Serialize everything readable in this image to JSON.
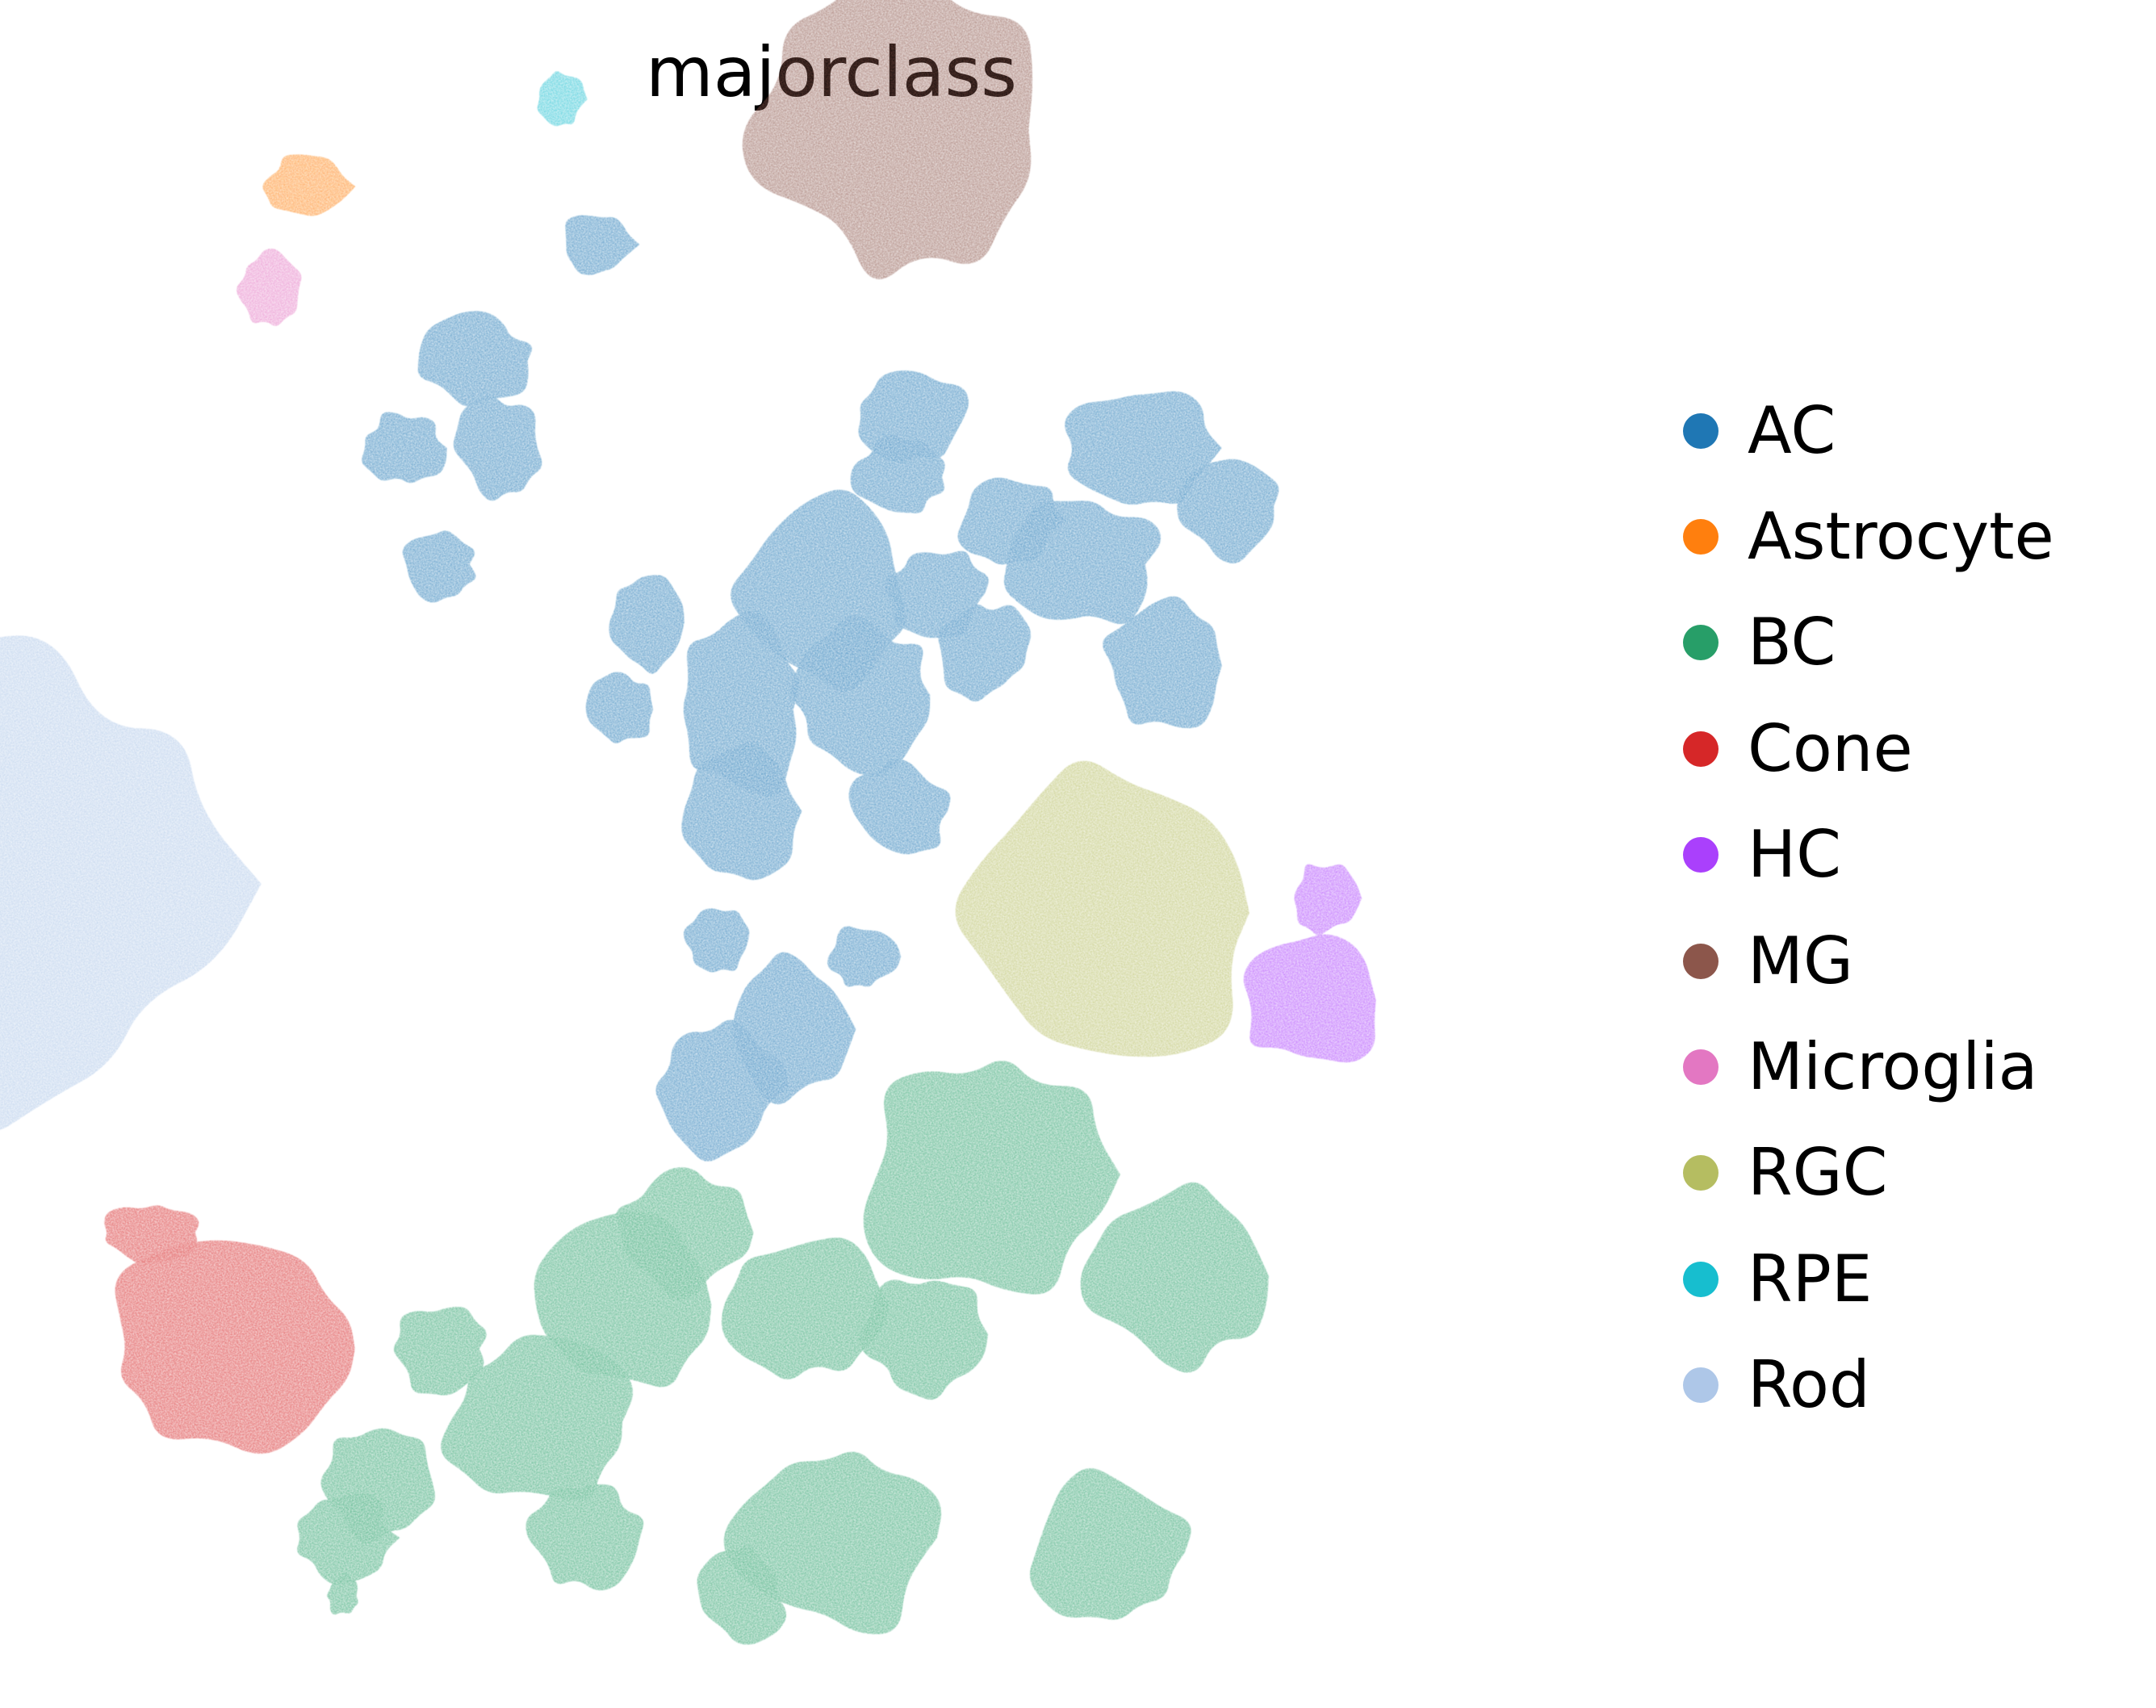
{
  "title": "majorclass",
  "chart_data": {
    "type": "scatter",
    "title": "majorclass",
    "xlabel": "",
    "ylabel": "",
    "axes_visible": false,
    "grid": false,
    "legend_position": "right",
    "series": [
      {
        "name": "AC",
        "color": "#1f77b4",
        "clusters": [
          {
            "x": 0.5,
            "y": 0.62
          },
          {
            "x": 0.57,
            "y": 0.7
          },
          {
            "x": 0.5,
            "y": 0.55
          },
          {
            "x": 0.6,
            "y": 0.63
          },
          {
            "x": 0.54,
            "y": 0.4
          },
          {
            "x": 0.48,
            "y": 0.36
          },
          {
            "x": 0.63,
            "y": 0.55
          },
          {
            "x": 0.66,
            "y": 0.7
          },
          {
            "x": 0.7,
            "y": 0.66
          },
          {
            "x": 0.63,
            "y": 0.78
          },
          {
            "x": 0.64,
            "y": 0.82
          },
          {
            "x": 0.3,
            "y": 0.8
          },
          {
            "x": 0.25,
            "y": 0.72
          },
          {
            "x": 0.22,
            "y": 0.8
          },
          {
            "x": 0.28,
            "y": 0.86
          },
          {
            "x": 0.38,
            "y": 0.94
          },
          {
            "x": 0.83,
            "y": 0.8
          },
          {
            "x": 0.78,
            "y": 0.72
          },
          {
            "x": 0.72,
            "y": 0.75
          },
          {
            "x": 0.85,
            "y": 0.65
          },
          {
            "x": 0.9,
            "y": 0.76
          },
          {
            "x": 0.42,
            "y": 0.68
          },
          {
            "x": 0.4,
            "y": 0.62
          },
          {
            "x": 0.48,
            "y": 0.46
          },
          {
            "x": 0.6,
            "y": 0.45
          }
        ]
      },
      {
        "name": "Astrocyte",
        "color": "#ff7f0e",
        "clusters": [
          {
            "x": 0.14,
            "y": 0.98
          }
        ]
      },
      {
        "name": "BC",
        "color": "#279e68",
        "clusters": [
          {
            "x": 0.7,
            "y": 0.3
          },
          {
            "x": 0.86,
            "y": 0.23
          },
          {
            "x": 0.45,
            "y": 0.26
          },
          {
            "x": 0.4,
            "y": 0.21
          },
          {
            "x": 0.55,
            "y": 0.21
          },
          {
            "x": 0.65,
            "y": 0.19
          },
          {
            "x": 0.33,
            "y": 0.13
          },
          {
            "x": 0.25,
            "y": 0.18
          },
          {
            "x": 0.58,
            "y": 0.05
          },
          {
            "x": 0.8,
            "y": 0.04
          },
          {
            "x": 0.37,
            "y": 0.05
          },
          {
            "x": 0.5,
            "y": 0.01
          },
          {
            "x": 0.2,
            "y": 0.09
          },
          {
            "x": 0.17,
            "y": 0.05
          },
          {
            "x": 0.17,
            "y": 0.01
          }
        ]
      },
      {
        "name": "Cone",
        "color": "#d62728",
        "clusters": [
          {
            "x": 0.08,
            "y": 0.18
          },
          {
            "x": 0.01,
            "y": 0.26
          }
        ]
      },
      {
        "name": "HC",
        "color": "#aa40fc",
        "clusters": [
          {
            "x": 0.97,
            "y": 0.42
          },
          {
            "x": 0.98,
            "y": 0.49
          }
        ]
      },
      {
        "name": "MG",
        "color": "#8c564b",
        "clusters": [
          {
            "x": 0.63,
            "y": 1.02
          }
        ]
      },
      {
        "name": "Microglia",
        "color": "#e377c2",
        "clusters": [
          {
            "x": 0.11,
            "y": 0.91
          }
        ]
      },
      {
        "name": "RGC",
        "color": "#b5bd61",
        "clusters": [
          {
            "x": 0.8,
            "y": 0.48
          }
        ]
      },
      {
        "name": "RPE",
        "color": "#17becf",
        "clusters": [
          {
            "x": 0.35,
            "y": 1.04
          }
        ]
      },
      {
        "name": "Rod",
        "color": "#aec7e8",
        "clusters": [
          {
            "x": -0.1,
            "y": 0.5
          }
        ]
      }
    ]
  }
}
